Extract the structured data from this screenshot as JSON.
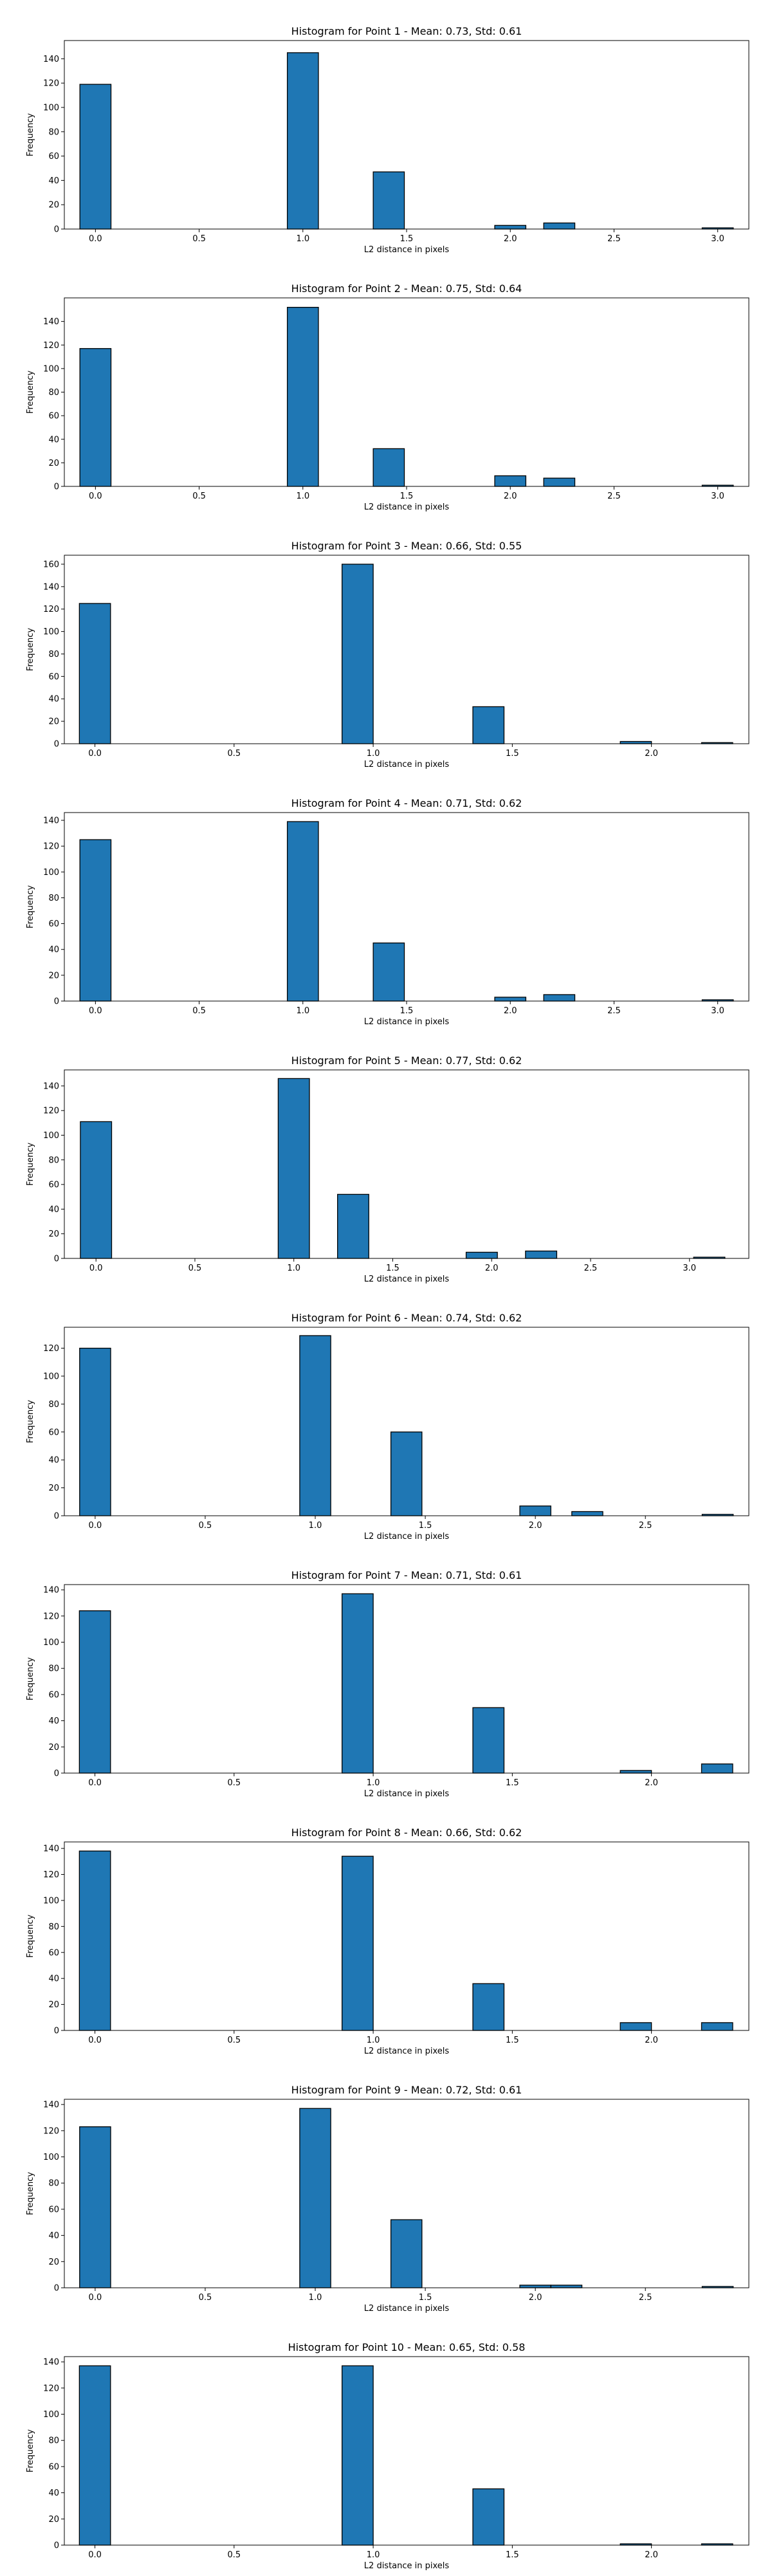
{
  "figure": {
    "bar_color": "#1f77b4",
    "edge_color": "#000000"
  },
  "chart_data": [
    {
      "type": "bar",
      "title": "Histogram for Point 1 - Mean: 0.73, Std: 0.61",
      "xlabel": "L2 distance in pixels",
      "ylabel": "Frequency",
      "xlim": [
        -0.15,
        3.15
      ],
      "ylim": [
        0,
        155
      ],
      "xticks": [
        0.0,
        0.5,
        1.0,
        1.5,
        2.0,
        2.5,
        3.0
      ],
      "xtick_labels": [
        "0.0",
        "0.5",
        "1.0",
        "1.5",
        "2.0",
        "2.5",
        "3.0"
      ],
      "yticks": [
        0,
        20,
        40,
        60,
        80,
        100,
        120,
        140
      ],
      "bin_width": 0.15,
      "bars": [
        {
          "x": 0.0,
          "value": 119
        },
        {
          "x": 1.0,
          "value": 145
        },
        {
          "x": 1.4142,
          "value": 47
        },
        {
          "x": 2.0,
          "value": 3
        },
        {
          "x": 2.2361,
          "value": 5
        },
        {
          "x": 3.0,
          "value": 1
        }
      ]
    },
    {
      "type": "bar",
      "title": "Histogram for Point 2 - Mean: 0.75, Std: 0.64",
      "xlabel": "L2 distance in pixels",
      "ylabel": "Frequency",
      "xlim": [
        -0.15,
        3.15
      ],
      "ylim": [
        0,
        160
      ],
      "xticks": [
        0.0,
        0.5,
        1.0,
        1.5,
        2.0,
        2.5,
        3.0
      ],
      "xtick_labels": [
        "0.0",
        "0.5",
        "1.0",
        "1.5",
        "2.0",
        "2.5",
        "3.0"
      ],
      "yticks": [
        0,
        20,
        40,
        60,
        80,
        100,
        120,
        140
      ],
      "bin_width": 0.15,
      "bars": [
        {
          "x": 0.0,
          "value": 117
        },
        {
          "x": 1.0,
          "value": 152
        },
        {
          "x": 1.4142,
          "value": 32
        },
        {
          "x": 2.0,
          "value": 9
        },
        {
          "x": 2.2361,
          "value": 7
        },
        {
          "x": 3.0,
          "value": 1
        }
      ]
    },
    {
      "type": "bar",
      "title": "Histogram for Point 3 - Mean: 0.66, Std: 0.55",
      "xlabel": "L2 distance in pixels",
      "ylabel": "Frequency",
      "xlim": [
        -0.11,
        2.35
      ],
      "ylim": [
        0,
        168
      ],
      "xticks": [
        0.0,
        0.5,
        1.0,
        1.5,
        2.0
      ],
      "xtick_labels": [
        "0.0",
        "0.5",
        "1.0",
        "1.5",
        "2.0"
      ],
      "yticks": [
        0,
        20,
        40,
        60,
        80,
        100,
        120,
        140,
        160
      ],
      "bin_width": 0.112,
      "bars": [
        {
          "x": 0.0,
          "value": 125
        },
        {
          "x": 0.944,
          "value": 160
        },
        {
          "x": 1.4142,
          "value": 33
        },
        {
          "x": 1.944,
          "value": 2
        },
        {
          "x": 2.2361,
          "value": 1
        }
      ]
    },
    {
      "type": "bar",
      "title": "Histogram for Point 4 - Mean: 0.71, Std: 0.62",
      "xlabel": "L2 distance in pixels",
      "ylabel": "Frequency",
      "xlim": [
        -0.15,
        3.15
      ],
      "ylim": [
        0,
        146
      ],
      "xticks": [
        0.0,
        0.5,
        1.0,
        1.5,
        2.0,
        2.5,
        3.0
      ],
      "xtick_labels": [
        "0.0",
        "0.5",
        "1.0",
        "1.5",
        "2.0",
        "2.5",
        "3.0"
      ],
      "yticks": [
        0,
        20,
        40,
        60,
        80,
        100,
        120,
        140
      ],
      "bin_width": 0.15,
      "bars": [
        {
          "x": 0.0,
          "value": 125
        },
        {
          "x": 1.0,
          "value": 139
        },
        {
          "x": 1.4142,
          "value": 45
        },
        {
          "x": 2.0,
          "value": 3
        },
        {
          "x": 2.2361,
          "value": 5
        },
        {
          "x": 3.0,
          "value": 1
        }
      ]
    },
    {
      "type": "bar",
      "title": "Histogram for Point 5 - Mean: 0.77, Std: 0.62",
      "xlabel": "L2 distance in pixels",
      "ylabel": "Frequency",
      "xlim": [
        -0.16,
        3.3
      ],
      "ylim": [
        0,
        153
      ],
      "xticks": [
        0.0,
        0.5,
        1.0,
        1.5,
        2.0,
        2.5,
        3.0
      ],
      "xtick_labels": [
        "0.0",
        "0.5",
        "1.0",
        "1.5",
        "2.0",
        "2.5",
        "3.0"
      ],
      "yticks": [
        0,
        20,
        40,
        60,
        80,
        100,
        120,
        140
      ],
      "bin_width": 0.158,
      "bars": [
        {
          "x": 0.0,
          "value": 111
        },
        {
          "x": 1.0,
          "value": 146
        },
        {
          "x": 1.3,
          "value": 52
        },
        {
          "x": 1.95,
          "value": 5
        },
        {
          "x": 2.25,
          "value": 6
        },
        {
          "x": 3.1,
          "value": 1
        }
      ]
    },
    {
      "type": "bar",
      "title": "Histogram for Point 6 - Mean: 0.74, Std: 0.62",
      "xlabel": "L2 distance in pixels",
      "ylabel": "Frequency",
      "xlim": [
        -0.14,
        2.97
      ],
      "ylim": [
        0,
        135
      ],
      "xticks": [
        0.0,
        0.5,
        1.0,
        1.5,
        2.0,
        2.5
      ],
      "xtick_labels": [
        "0.0",
        "0.5",
        "1.0",
        "1.5",
        "2.0",
        "2.5"
      ],
      "yticks": [
        0,
        20,
        40,
        60,
        80,
        100,
        120
      ],
      "bin_width": 0.141,
      "bars": [
        {
          "x": 0.0,
          "value": 120
        },
        {
          "x": 1.0,
          "value": 129
        },
        {
          "x": 1.4142,
          "value": 60
        },
        {
          "x": 2.0,
          "value": 7
        },
        {
          "x": 2.2361,
          "value": 3
        },
        {
          "x": 2.8284,
          "value": 1
        }
      ]
    },
    {
      "type": "bar",
      "title": "Histogram for Point 7 - Mean: 0.71, Std: 0.61",
      "xlabel": "L2 distance in pixels",
      "ylabel": "Frequency",
      "xlim": [
        -0.11,
        2.35
      ],
      "ylim": [
        0,
        144
      ],
      "xticks": [
        0.0,
        0.5,
        1.0,
        1.5,
        2.0
      ],
      "xtick_labels": [
        "0.0",
        "0.5",
        "1.0",
        "1.5",
        "2.0"
      ],
      "yticks": [
        0,
        20,
        40,
        60,
        80,
        100,
        120,
        140
      ],
      "bin_width": 0.112,
      "bars": [
        {
          "x": 0.0,
          "value": 124
        },
        {
          "x": 0.944,
          "value": 137
        },
        {
          "x": 1.4142,
          "value": 50
        },
        {
          "x": 1.944,
          "value": 2
        },
        {
          "x": 2.2361,
          "value": 7
        }
      ]
    },
    {
      "type": "bar",
      "title": "Histogram for Point 8 - Mean: 0.66, Std: 0.62",
      "xlabel": "L2 distance in pixels",
      "ylabel": "Frequency",
      "xlim": [
        -0.11,
        2.35
      ],
      "ylim": [
        0,
        145
      ],
      "xticks": [
        0.0,
        0.5,
        1.0,
        1.5,
        2.0
      ],
      "xtick_labels": [
        "0.0",
        "0.5",
        "1.0",
        "1.5",
        "2.0"
      ],
      "yticks": [
        0,
        20,
        40,
        60,
        80,
        100,
        120,
        140
      ],
      "bin_width": 0.112,
      "bars": [
        {
          "x": 0.0,
          "value": 138
        },
        {
          "x": 0.944,
          "value": 134
        },
        {
          "x": 1.4142,
          "value": 36
        },
        {
          "x": 1.944,
          "value": 6
        },
        {
          "x": 2.2361,
          "value": 6
        }
      ]
    },
    {
      "type": "bar",
      "title": "Histogram for Point 9 - Mean: 0.72, Std: 0.61",
      "xlabel": "L2 distance in pixels",
      "ylabel": "Frequency",
      "xlim": [
        -0.14,
        2.97
      ],
      "ylim": [
        0,
        144
      ],
      "xticks": [
        0.0,
        0.5,
        1.0,
        1.5,
        2.0,
        2.5
      ],
      "xtick_labels": [
        "0.0",
        "0.5",
        "1.0",
        "1.5",
        "2.0",
        "2.5"
      ],
      "yticks": [
        0,
        20,
        40,
        60,
        80,
        100,
        120,
        140
      ],
      "bin_width": 0.141,
      "bars": [
        {
          "x": 0.0,
          "value": 123
        },
        {
          "x": 1.0,
          "value": 137
        },
        {
          "x": 1.4142,
          "value": 52
        },
        {
          "x": 2.0,
          "value": 2
        },
        {
          "x": 2.1411,
          "value": 2
        },
        {
          "x": 2.8284,
          "value": 1
        }
      ]
    },
    {
      "type": "bar",
      "title": "Histogram for Point 10 - Mean: 0.65, Std: 0.58",
      "xlabel": "L2 distance in pixels",
      "ylabel": "Frequency",
      "xlim": [
        -0.11,
        2.35
      ],
      "ylim": [
        0,
        144
      ],
      "xticks": [
        0.0,
        0.5,
        1.0,
        1.5,
        2.0
      ],
      "xtick_labels": [
        "0.0",
        "0.5",
        "1.0",
        "1.5",
        "2.0"
      ],
      "yticks": [
        0,
        20,
        40,
        60,
        80,
        100,
        120,
        140
      ],
      "bin_width": 0.112,
      "bars": [
        {
          "x": 0.0,
          "value": 137
        },
        {
          "x": 0.944,
          "value": 137
        },
        {
          "x": 1.4142,
          "value": 43
        },
        {
          "x": 1.944,
          "value": 1
        },
        {
          "x": 2.2361,
          "value": 1
        }
      ]
    }
  ]
}
